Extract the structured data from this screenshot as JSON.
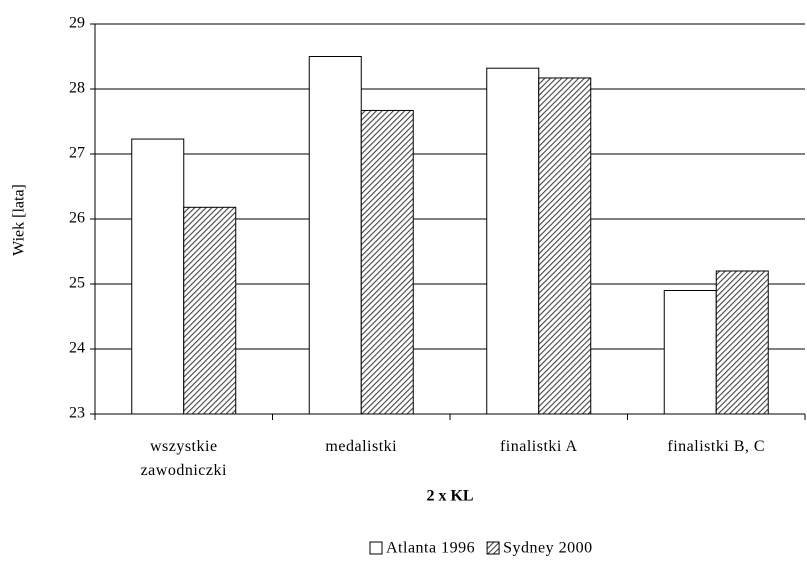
{
  "chart_data": {
    "type": "bar",
    "ylabel": "Wiek [lata]",
    "xlabel": "2 x KL",
    "categories": [
      "wszystkie zawodniczki",
      "medalistki",
      "finalistki A",
      "finalistki B, C"
    ],
    "series": [
      {
        "name": "Atlanta 1996",
        "color": "#ffffff",
        "hatch": false,
        "values": [
          27.23,
          28.5,
          28.32,
          24.9
        ]
      },
      {
        "name": "Sydney 2000",
        "color": "#444444",
        "hatch": true,
        "values": [
          26.18,
          27.67,
          28.17,
          25.2
        ]
      }
    ],
    "ylim": [
      23,
      29
    ],
    "yticks": [
      23,
      24,
      25,
      26,
      27,
      28,
      29
    ],
    "grid": true,
    "legend": "bottom"
  }
}
